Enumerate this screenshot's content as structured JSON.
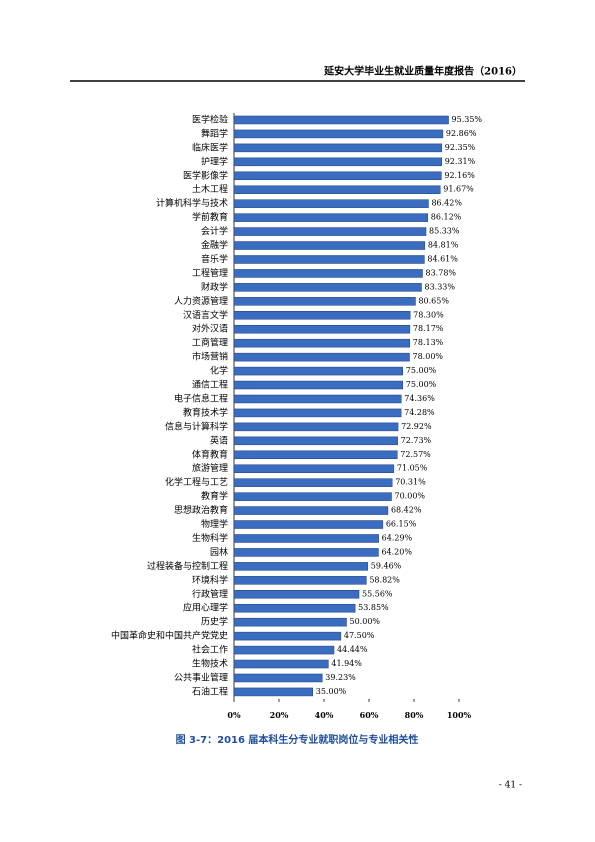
{
  "header": {
    "title": "延安大学毕业生就业质量年度报告（2016）"
  },
  "chart_data": {
    "type": "hbar",
    "color": "#3a6cc0",
    "categories": [
      "医学检验",
      "舞蹈学",
      "临床医学",
      "护理学",
      "医学影像学",
      "土木工程",
      "计算机科学与技术",
      "学前教育",
      "会计学",
      "金融学",
      "音乐学",
      "工程管理",
      "财政学",
      "人力资源管理",
      "汉语言文学",
      "对外汉语",
      "工商管理",
      "市场营销",
      "化学",
      "通信工程",
      "电子信息工程",
      "教育技术学",
      "信息与计算科学",
      "英语",
      "体育教育",
      "旅游管理",
      "化学工程与工艺",
      "教育学",
      "思想政治教育",
      "物理学",
      "生物科学",
      "园林",
      "过程装备与控制工程",
      "环境科学",
      "行政管理",
      "应用心理学",
      "历史学",
      "中国革命史和中国共产党党史",
      "社会工作",
      "生物技术",
      "公共事业管理",
      "石油工程"
    ],
    "values": [
      95.35,
      92.86,
      92.35,
      92.31,
      92.16,
      91.67,
      86.42,
      86.12,
      85.33,
      84.81,
      84.61,
      83.78,
      83.33,
      80.65,
      78.3,
      78.17,
      78.13,
      78,
      75,
      75,
      74.36,
      74.28,
      72.92,
      72.73,
      72.57,
      71.05,
      70.31,
      70,
      68.42,
      66.15,
      64.29,
      64.2,
      59.46,
      58.82,
      55.56,
      53.85,
      50,
      47.5,
      44.44,
      41.94,
      39.23,
      35
    ],
    "value_labels": [
      "95.35%",
      "92.86%",
      "92.35%",
      "92.31%",
      "92.16%",
      "91.67%",
      "86.42%",
      "86.12%",
      "85.33%",
      "84.81%",
      "84.61%",
      "83.78%",
      "83.33%",
      "80.65%",
      "78.30%",
      "78.17%",
      "78.13%",
      "78.00%",
      "75.00%",
      "75.00%",
      "74.36%",
      "74.28%",
      "72.92%",
      "72.73%",
      "72.57%",
      "71.05%",
      "70.31%",
      "70.00%",
      "68.42%",
      "66.15%",
      "64.29%",
      "64.20%",
      "59.46%",
      "58.82%",
      "55.56%",
      "53.85%",
      "50.00%",
      "47.50%",
      "44.44%",
      "41.94%",
      "39.23%",
      "35.00%"
    ],
    "xlim": [
      0,
      100
    ],
    "xticks": [
      {
        "value": 0,
        "label": "0%"
      },
      {
        "value": 20,
        "label": "20%"
      },
      {
        "value": 40,
        "label": "40%"
      },
      {
        "value": 60,
        "label": "60%"
      },
      {
        "value": 80,
        "label": "80%"
      },
      {
        "value": 100,
        "label": "100%"
      }
    ]
  },
  "caption": "图 3-7：2016 届本科生分专业就职岗位与专业相关性",
  "page_number": "- 41 -"
}
